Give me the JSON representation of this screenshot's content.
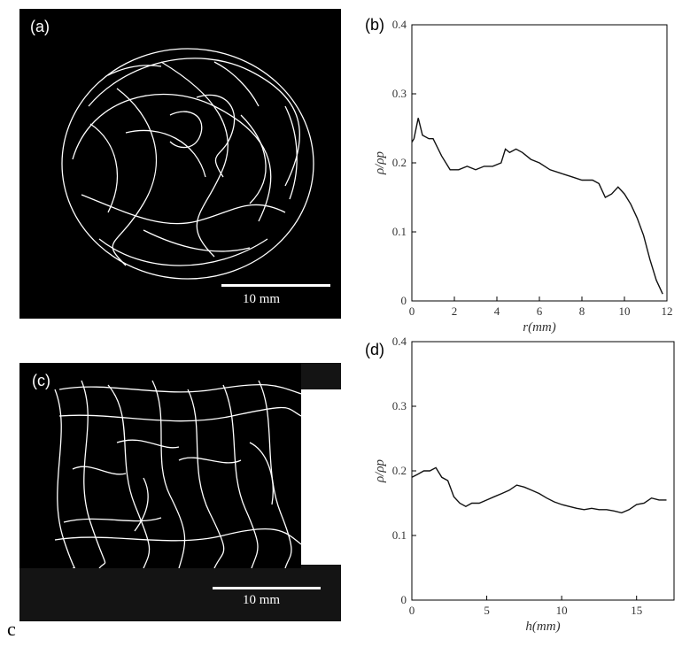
{
  "figure": {
    "stray_caption": "c",
    "panel_a": {
      "label": "(a)",
      "scale_bar": "10 mm"
    },
    "panel_c": {
      "label": "(c)",
      "scale_bar": "10 mm"
    }
  },
  "chart_data": [
    {
      "panel": "(b)",
      "type": "line",
      "xlabel": "r(mm)",
      "ylabel": "ρ/ρp",
      "xlim": [
        0,
        12
      ],
      "ylim": [
        0,
        0.4
      ],
      "xticks": [
        0,
        2,
        4,
        6,
        8,
        10,
        12
      ],
      "yticks": [
        0,
        0.1,
        0.2,
        0.3,
        0.4
      ],
      "grid": false,
      "x": [
        0,
        0.1,
        0.3,
        0.5,
        0.8,
        1.0,
        1.4,
        1.8,
        2.2,
        2.6,
        3.0,
        3.4,
        3.8,
        4.2,
        4.4,
        4.6,
        4.9,
        5.2,
        5.6,
        6.0,
        6.5,
        7.0,
        7.5,
        8.0,
        8.5,
        8.8,
        9.1,
        9.4,
        9.7,
        10.0,
        10.3,
        10.6,
        10.9,
        11.2,
        11.5,
        11.8
      ],
      "y": [
        0.23,
        0.235,
        0.265,
        0.24,
        0.235,
        0.235,
        0.21,
        0.19,
        0.19,
        0.195,
        0.19,
        0.195,
        0.195,
        0.2,
        0.22,
        0.215,
        0.22,
        0.215,
        0.205,
        0.2,
        0.19,
        0.185,
        0.18,
        0.175,
        0.175,
        0.17,
        0.15,
        0.155,
        0.165,
        0.155,
        0.14,
        0.12,
        0.095,
        0.06,
        0.03,
        0.01
      ]
    },
    {
      "panel": "(d)",
      "type": "line",
      "xlabel": "h(mm)",
      "ylabel": "ρ/ρp",
      "xlim": [
        0,
        17.5
      ],
      "ylim": [
        0,
        0.4
      ],
      "xticks": [
        0,
        5,
        10,
        15
      ],
      "yticks": [
        0,
        0.1,
        0.2,
        0.3,
        0.4
      ],
      "grid": false,
      "x": [
        0,
        0.4,
        0.8,
        1.2,
        1.6,
        2.0,
        2.4,
        2.8,
        3.2,
        3.6,
        4.0,
        4.5,
        5.0,
        5.5,
        6.0,
        6.5,
        7.0,
        7.5,
        8.0,
        8.5,
        9.0,
        9.5,
        10.0,
        10.5,
        11.0,
        11.5,
        12.0,
        12.5,
        13.0,
        13.5,
        14.0,
        14.5,
        15.0,
        15.5,
        16.0,
        16.5,
        17.0
      ],
      "y": [
        0.19,
        0.195,
        0.2,
        0.2,
        0.205,
        0.19,
        0.185,
        0.16,
        0.15,
        0.145,
        0.15,
        0.15,
        0.155,
        0.16,
        0.165,
        0.17,
        0.178,
        0.175,
        0.17,
        0.165,
        0.158,
        0.152,
        0.148,
        0.145,
        0.142,
        0.14,
        0.142,
        0.14,
        0.14,
        0.138,
        0.135,
        0.14,
        0.148,
        0.15,
        0.158,
        0.155,
        0.155
      ]
    }
  ]
}
